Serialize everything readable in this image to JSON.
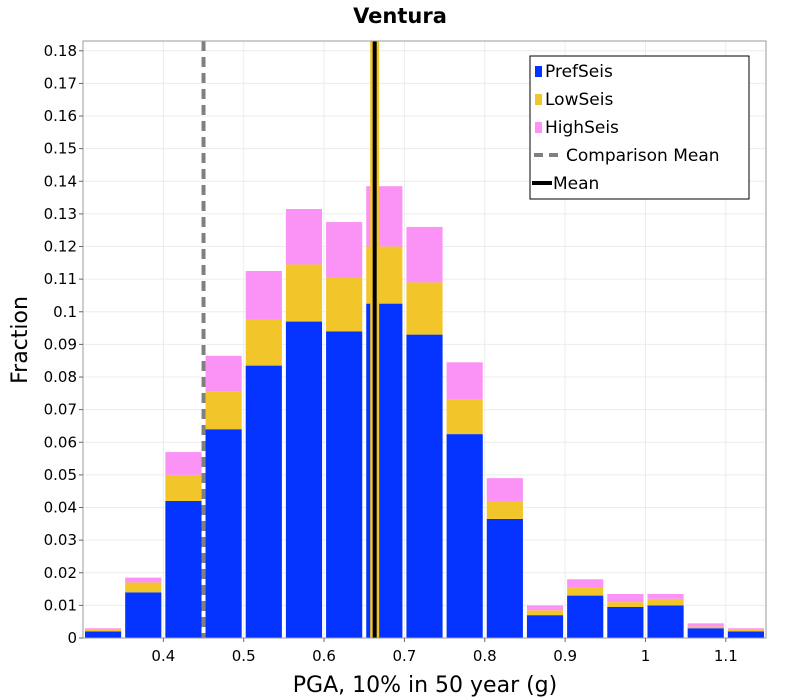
{
  "chart_data": {
    "type": "bar",
    "stacked": true,
    "title": "Ventura",
    "xlabel": "PGA, 10% in 50 year (g)",
    "ylabel": "Fraction",
    "xlim": [
      0.3,
      1.15
    ],
    "ylim": [
      0,
      0.183
    ],
    "bin_width": 0.05,
    "x": [
      0.325,
      0.375,
      0.425,
      0.475,
      0.525,
      0.575,
      0.625,
      0.675,
      0.725,
      0.775,
      0.825,
      0.875,
      0.925,
      0.975,
      1.025,
      1.075,
      1.125
    ],
    "xticks": [
      0.4,
      0.5,
      0.6,
      0.7,
      0.8,
      0.9,
      1,
      1.1
    ],
    "xtick_labels": [
      "0.4",
      "0.5",
      "0.6",
      "0.7",
      "0.8",
      "0.9",
      "1",
      "1.1"
    ],
    "yticks": [
      0,
      0.01,
      0.02,
      0.03,
      0.04,
      0.05,
      0.06,
      0.07,
      0.08,
      0.09,
      0.1,
      0.11,
      0.12,
      0.13,
      0.14,
      0.15,
      0.16,
      0.17,
      0.18
    ],
    "ytick_labels": [
      "0",
      "0.01",
      "0.02",
      "0.03",
      "0.04",
      "0.05",
      "0.06",
      "0.07",
      "0.08",
      "0.09",
      "0.1",
      "0.11",
      "0.12",
      "0.13",
      "0.14",
      "0.15",
      "0.16",
      "0.17",
      "0.18"
    ],
    "series": [
      {
        "name": "PrefSeis",
        "color": "#0433ff",
        "values": [
          0.002,
          0.014,
          0.042,
          0.064,
          0.0835,
          0.097,
          0.094,
          0.1025,
          0.093,
          0.0625,
          0.0365,
          0.007,
          0.013,
          0.0095,
          0.01,
          0.003,
          0.002
        ]
      },
      {
        "name": "LowSeis",
        "color": "#f2c62a",
        "values": [
          0.0005,
          0.003,
          0.008,
          0.0115,
          0.014,
          0.0175,
          0.0165,
          0.0175,
          0.016,
          0.0105,
          0.0055,
          0.0015,
          0.0025,
          0.0015,
          0.002,
          0.0005,
          0.0005
        ]
      },
      {
        "name": "HighSeis",
        "color": "#fb93f7",
        "values": [
          0.0005,
          0.0015,
          0.007,
          0.011,
          0.015,
          0.017,
          0.017,
          0.0185,
          0.017,
          0.0115,
          0.007,
          0.0015,
          0.0025,
          0.0025,
          0.0015,
          0.001,
          0.0005
        ]
      }
    ],
    "reference_lines": [
      {
        "name": "Comparison Mean",
        "x": 0.45,
        "color": "#808080",
        "style": "dashed"
      },
      {
        "name": "Mean",
        "x": 0.663,
        "color": "#000000",
        "style": "solid"
      }
    ],
    "mean_highlight_color": "#f2c62a",
    "grid": true,
    "legend_position": "top-right"
  }
}
